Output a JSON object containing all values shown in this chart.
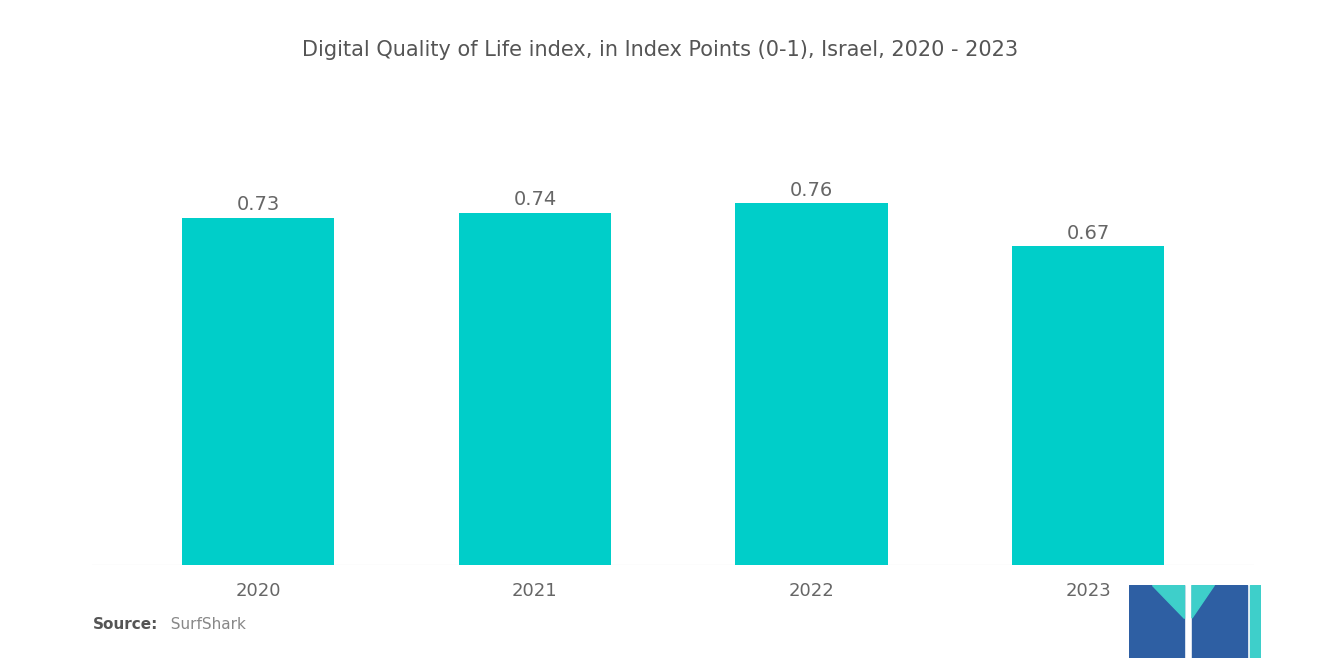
{
  "title": "Digital Quality of Life index, in Index Points (0-1), Israel, 2020 - 2023",
  "categories": [
    "2020",
    "2021",
    "2022",
    "2023"
  ],
  "values": [
    0.73,
    0.74,
    0.76,
    0.67
  ],
  "bar_color": "#00CEC9",
  "background_color": "#ffffff",
  "title_fontsize": 15,
  "label_fontsize": 14,
  "tick_fontsize": 13,
  "source_label": "Source:",
  "source_value": "  SurfShark",
  "ylim": [
    0,
    0.95
  ],
  "bar_width": 0.55,
  "logo_blue": "#2e5fa3",
  "logo_teal": "#3ecfca"
}
